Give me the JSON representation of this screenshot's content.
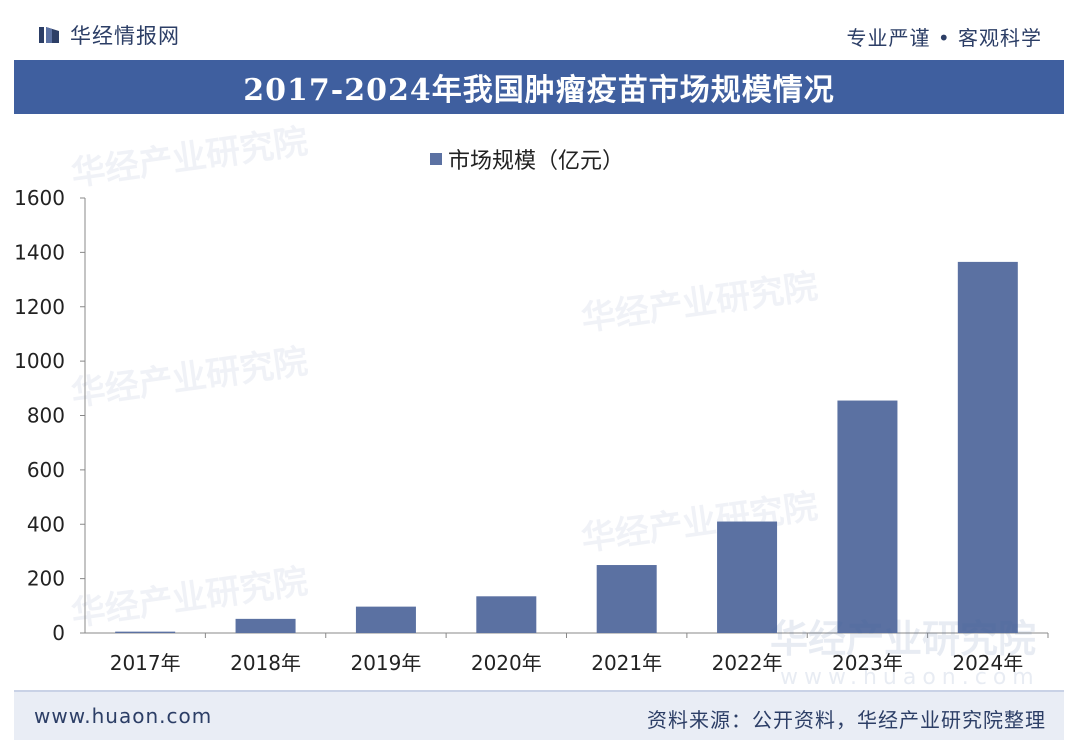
{
  "header": {
    "brand": "华经情报网",
    "slogan": "专业严谨 • 客观科学"
  },
  "title": "2017-2024年我国肿瘤疫苗市场规模情况",
  "footer": {
    "url": "www.huaon.com",
    "source": "资料来源：公开资料，华经产业研究院整理"
  },
  "watermarks": [
    "华经产业研究院",
    "华经产业研究院",
    "华经产业研究院",
    "华经产业研究院",
    "华经产业研究院"
  ],
  "watermark_logo": {
    "name": "华经产业研究院",
    "url": "www.huaon.com"
  },
  "colors": {
    "bar": "#5b71a2",
    "band": "#3f5f9f",
    "text": "#2c3e66"
  },
  "chart_data": {
    "type": "bar",
    "categories": [
      "2017年",
      "2018年",
      "2019年",
      "2020年",
      "2021年",
      "2022年",
      "2023年",
      "2024年"
    ],
    "series": [
      {
        "name": "市场规模（亿元）",
        "values": [
          5,
          52,
          97,
          135,
          250,
          410,
          855,
          1365
        ]
      }
    ],
    "ylim": [
      0,
      1600
    ],
    "yticks": [
      0,
      200,
      400,
      600,
      800,
      1000,
      1200,
      1400,
      1600
    ],
    "grid": false,
    "legend": "top-center"
  }
}
